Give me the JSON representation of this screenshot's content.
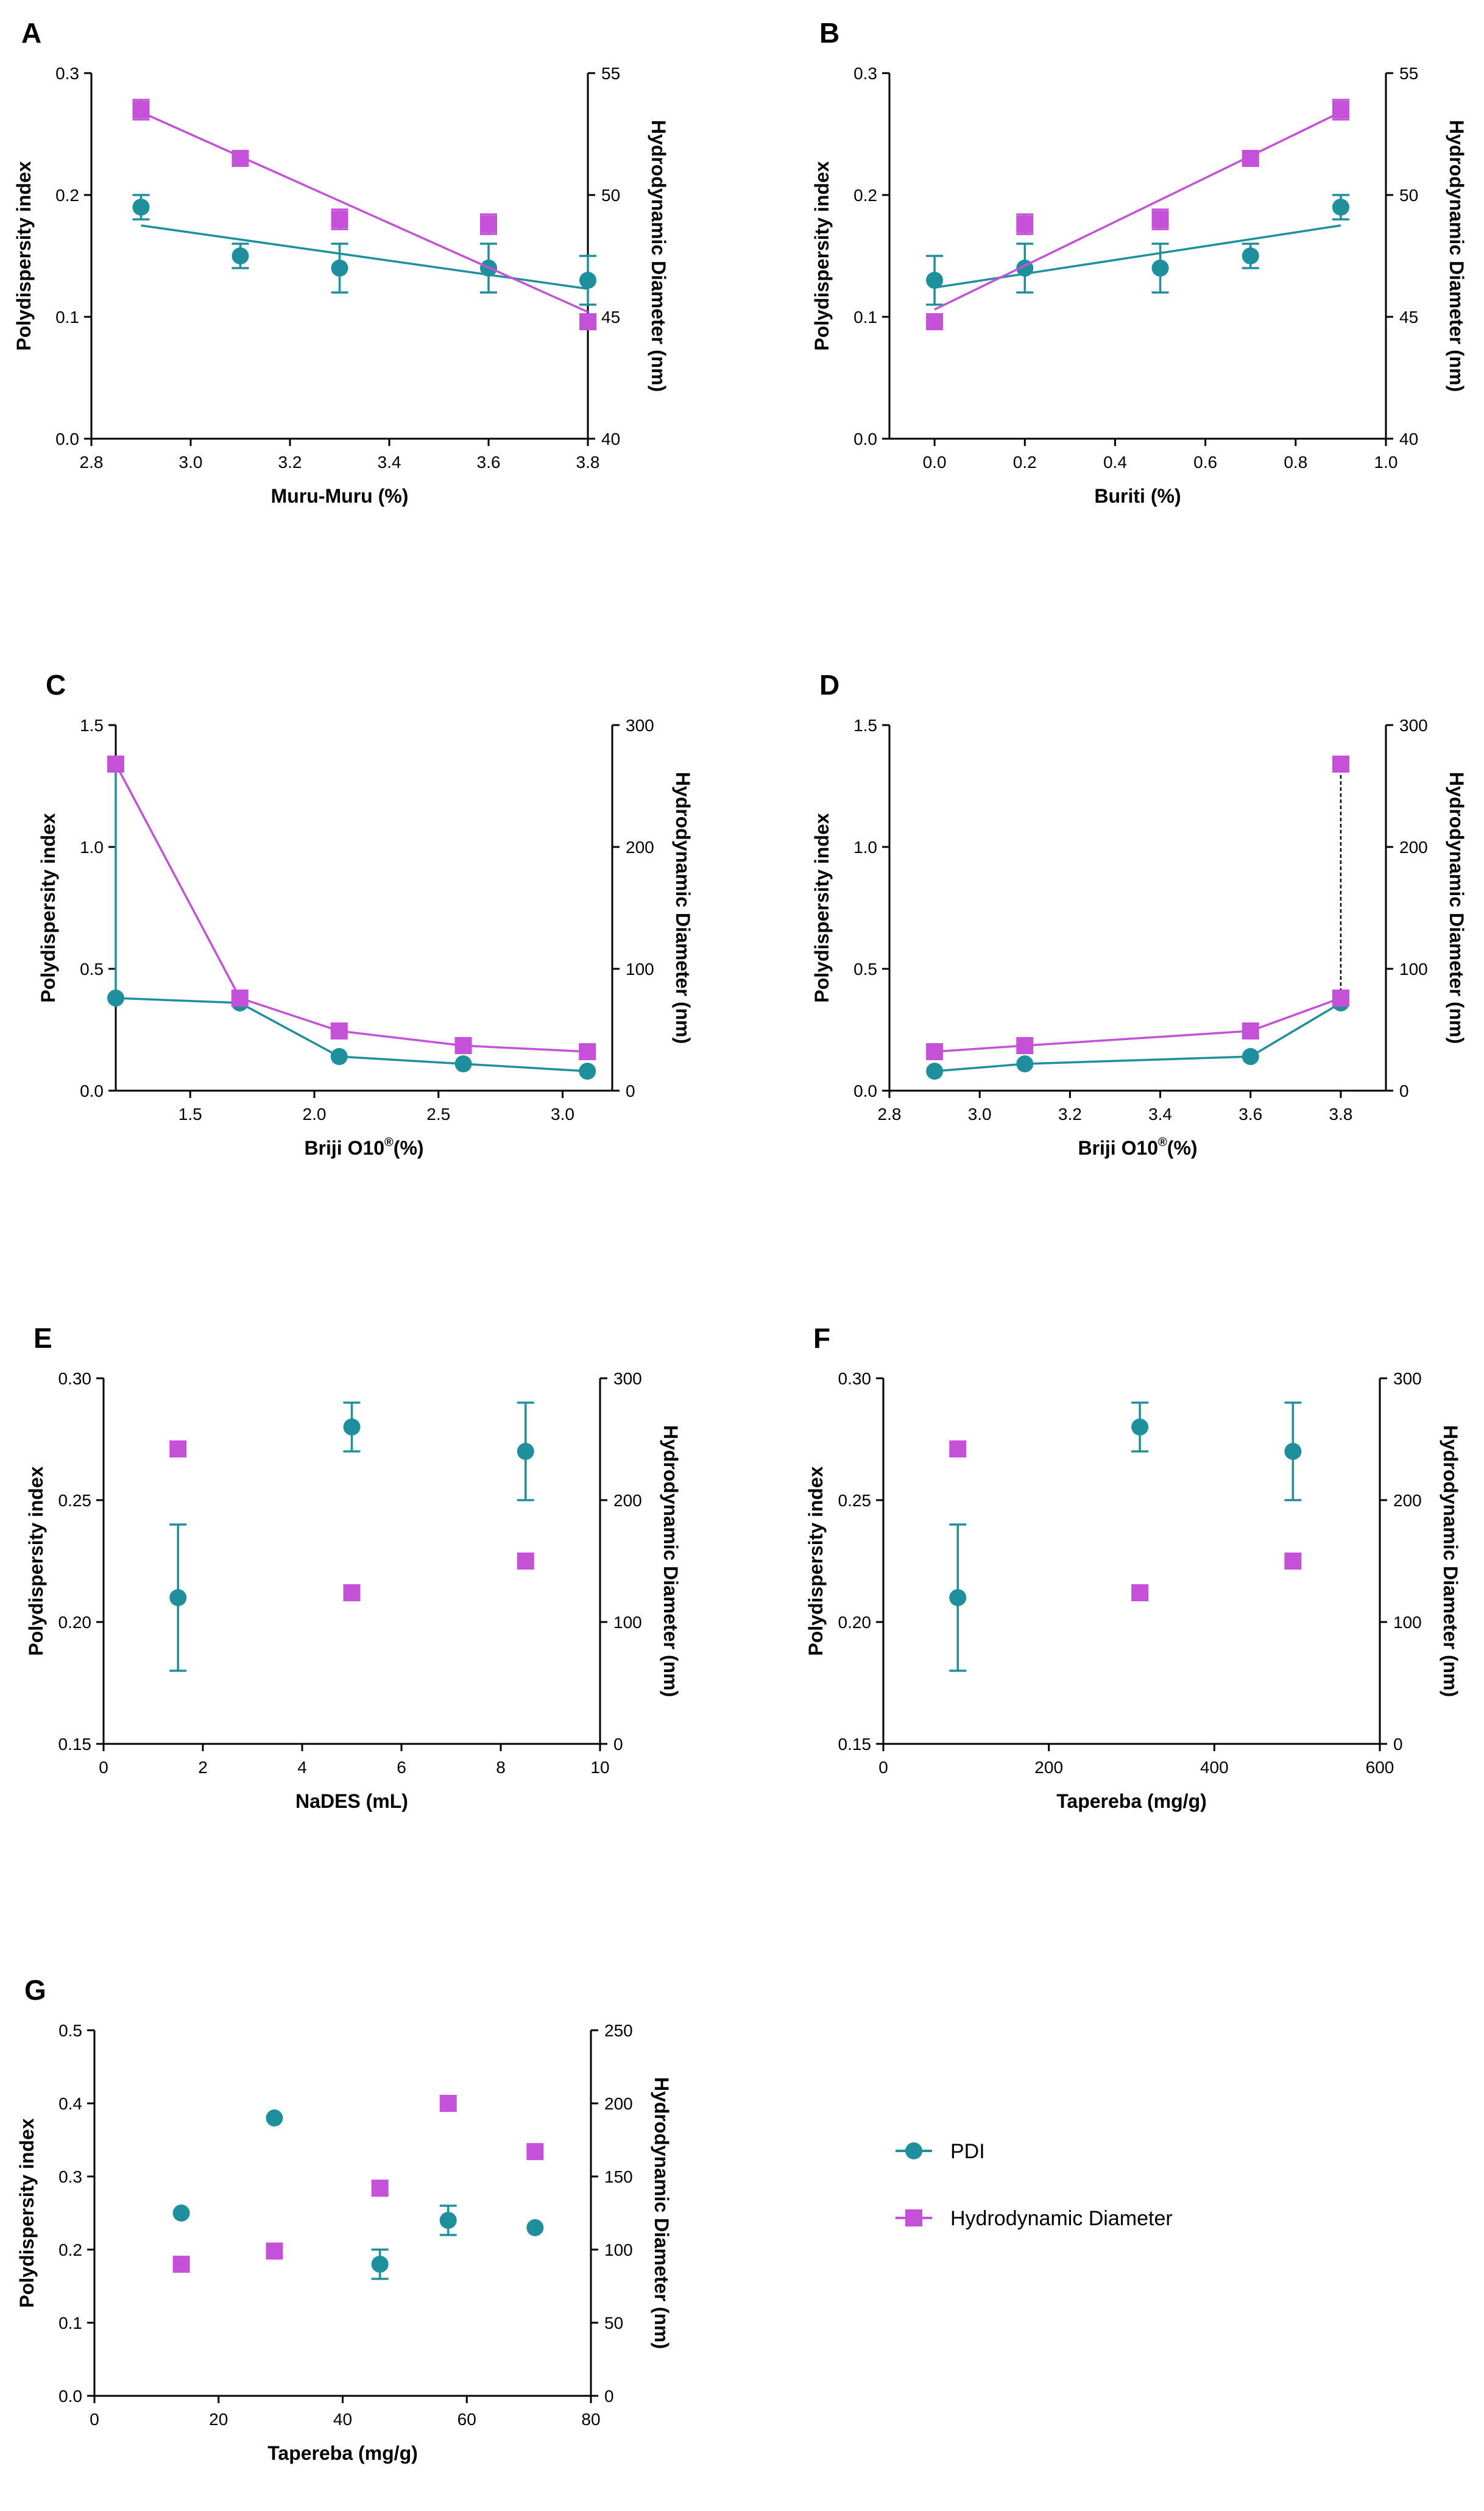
{
  "colors": {
    "pdi": "#1e8f9c",
    "hd": "#c451d8",
    "axis": "#000000"
  },
  "legend": {
    "pdi": "PDI",
    "hd": "Hydrodynamic Diameter"
  },
  "chart_data": [
    {
      "panel": "A",
      "type": "scatter",
      "xlabel": "Muru-Muru (%)",
      "ylabel": "Polydispersity index",
      "y2label": "Hydrodynamic Diameter (nm)",
      "xlim": [
        2.8,
        3.8
      ],
      "xticks": [
        2.8,
        3.0,
        3.2,
        3.4,
        3.6,
        3.8
      ],
      "xticklabels": [
        "2.8",
        "3.0",
        "3.2",
        "3.4",
        "3.6",
        "3.8"
      ],
      "ylim": [
        0,
        0.3
      ],
      "yticks": [
        0,
        0.1,
        0.2,
        0.3
      ],
      "yticklabels": [
        "0.0",
        "0.1",
        "0.2",
        "0.3"
      ],
      "y2lim": [
        40,
        55
      ],
      "y2ticks": [
        40,
        45,
        50,
        55
      ],
      "y2ticklabels": [
        "40",
        "45",
        "50",
        "55"
      ],
      "series": [
        {
          "name": "PDI",
          "axis": "y",
          "marker": "circle",
          "x": [
            2.9,
            3.1,
            3.3,
            3.6,
            3.8
          ],
          "y": [
            0.19,
            0.15,
            0.14,
            0.14,
            0.13
          ],
          "err": [
            0.01,
            0.01,
            0.02,
            0.02,
            0.02
          ],
          "fit": [
            [
              2.9,
              0.175
            ],
            [
              3.8,
              0.123
            ]
          ]
        },
        {
          "name": "Hydrodynamic Diameter",
          "axis": "y2",
          "marker": "square",
          "x": [
            2.9,
            3.1,
            3.3,
            3.6,
            3.8
          ],
          "y": [
            53.5,
            51.5,
            49.0,
            48.8,
            44.8
          ],
          "err": [
            0.4,
            0.2,
            0.4,
            0.4,
            0.2
          ],
          "fit": [
            [
              2.9,
              53.4
            ],
            [
              3.8,
              45.2
            ]
          ]
        }
      ]
    },
    {
      "panel": "B",
      "type": "scatter",
      "xlabel": "Buriti (%)",
      "ylabel": "Polydispersity index",
      "y2label": "Hydrodynamic Diameter (nm)",
      "xlim": [
        -0.1,
        1.0
      ],
      "xticks": [
        0.0,
        0.2,
        0.4,
        0.6,
        0.8,
        1.0
      ],
      "xticklabels": [
        "0.0",
        "0.2",
        "0.4",
        "0.6",
        "0.8",
        "1.0"
      ],
      "ylim": [
        0,
        0.3
      ],
      "yticks": [
        0,
        0.1,
        0.2,
        0.3
      ],
      "yticklabels": [
        "0.0",
        "0.1",
        "0.2",
        "0.3"
      ],
      "y2lim": [
        40,
        55
      ],
      "y2ticks": [
        40,
        45,
        50,
        55
      ],
      "y2ticklabels": [
        "40",
        "45",
        "50",
        "55"
      ],
      "series": [
        {
          "name": "PDI",
          "axis": "y",
          "marker": "circle",
          "x": [
            0.0,
            0.2,
            0.5,
            0.7,
            0.9
          ],
          "y": [
            0.13,
            0.14,
            0.14,
            0.15,
            0.19
          ],
          "err": [
            0.02,
            0.02,
            0.02,
            0.01,
            0.01
          ],
          "fit": [
            [
              0.0,
              0.124
            ],
            [
              0.9,
              0.175
            ]
          ]
        },
        {
          "name": "Hydrodynamic Diameter",
          "axis": "y2",
          "marker": "square",
          "x": [
            0.0,
            0.2,
            0.5,
            0.7,
            0.9
          ],
          "y": [
            44.8,
            48.8,
            49.0,
            51.5,
            53.5
          ],
          "err": [
            0.2,
            0.4,
            0.4,
            0.2,
            0.4
          ],
          "fit": [
            [
              0.0,
              45.3
            ],
            [
              0.9,
              53.4
            ]
          ]
        }
      ]
    },
    {
      "panel": "C",
      "type": "line",
      "xlabel": "Briji O10",
      "xlabel_sup": "®",
      "xlabel_tail": "(%)",
      "ylabel": "Polydispersity index",
      "y2label": "Hydrodynamic Diameter (nm)",
      "xlim": [
        1.2,
        3.2
      ],
      "xticks": [
        1.5,
        2.0,
        2.5,
        3.0
      ],
      "xticklabels": [
        "1.5",
        "2.0",
        "2.5",
        "3.0"
      ],
      "ylim": [
        0,
        1.5
      ],
      "yticks": [
        0,
        0.5,
        1.0,
        1.5
      ],
      "yticklabels": [
        "0.0",
        "0.5",
        "1.0",
        "1.5"
      ],
      "y2lim": [
        0,
        300
      ],
      "y2ticks": [
        0,
        100,
        200,
        300
      ],
      "y2ticklabels": [
        "0",
        "100",
        "200",
        "300"
      ],
      "series": [
        {
          "name": "PDI",
          "axis": "y",
          "marker": "circle",
          "x": [
            1.2,
            1.7,
            2.1,
            2.6,
            3.1
          ],
          "y": [
            0.38,
            0.36,
            0.14,
            0.11,
            0.08
          ],
          "err": [
            0,
            0,
            0,
            0,
            0
          ],
          "connect": true,
          "drop_from": [
            1.2,
            1.34
          ]
        },
        {
          "name": "Hydrodynamic Diameter",
          "axis": "y2",
          "marker": "square",
          "x": [
            1.2,
            1.7,
            2.1,
            2.6,
            3.1
          ],
          "y": [
            268,
            76,
            49,
            37,
            32
          ],
          "err": [
            0,
            0,
            0,
            0,
            0
          ],
          "connect": true
        }
      ]
    },
    {
      "panel": "D",
      "type": "line",
      "xlabel": "Briji O10",
      "xlabel_sup": "®",
      "xlabel_tail": "(%)",
      "ylabel": "Polydispersity index",
      "y2label": "Hydrodynamic Diameter (nm)",
      "xlim": [
        2.8,
        3.9
      ],
      "xticks": [
        2.8,
        3.0,
        3.2,
        3.4,
        3.6,
        3.8
      ],
      "xticklabels": [
        "2.8",
        "3.0",
        "3.2",
        "3.4",
        "3.6",
        "3.8"
      ],
      "ylim": [
        0,
        1.5
      ],
      "yticks": [
        0,
        0.5,
        1.0,
        1.5
      ],
      "yticklabels": [
        "0.0",
        "0.5",
        "1.0",
        "1.5"
      ],
      "y2lim": [
        0,
        300
      ],
      "y2ticks": [
        0,
        100,
        200,
        300
      ],
      "y2ticklabels": [
        "0",
        "100",
        "200",
        "300"
      ],
      "series": [
        {
          "name": "PDI",
          "axis": "y",
          "marker": "circle",
          "x": [
            2.9,
            3.1,
            3.6,
            3.8
          ],
          "y": [
            0.08,
            0.11,
            0.14,
            0.36
          ],
          "err": [
            0,
            0,
            0,
            0
          ],
          "connect": true
        },
        {
          "name": "Hydrodynamic Diameter",
          "axis": "y2",
          "marker": "square",
          "x": [
            2.9,
            3.1,
            3.6,
            3.8
          ],
          "y": [
            32,
            37,
            49,
            76
          ],
          "err": [
            0,
            0,
            0,
            0
          ],
          "connect": true,
          "spike": [
            3.8,
            268
          ]
        }
      ]
    },
    {
      "panel": "E",
      "type": "scatter",
      "xlabel": "NaDES (mL)",
      "ylabel": "Polydispersity index",
      "y2label": "Hydrodynamic Diameter (nm)",
      "xlim": [
        0,
        10
      ],
      "xticks": [
        0,
        2,
        4,
        6,
        8,
        10
      ],
      "xticklabels": [
        "0",
        "2",
        "4",
        "6",
        "8",
        "10"
      ],
      "ylim": [
        0.15,
        0.3
      ],
      "yticks": [
        0.15,
        0.2,
        0.25,
        0.3
      ],
      "yticklabels": [
        "0.15",
        "0.20",
        "0.25",
        "0.30"
      ],
      "y2lim": [
        0,
        300
      ],
      "y2ticks": [
        0,
        100,
        200,
        300
      ],
      "y2ticklabels": [
        "0",
        "100",
        "200",
        "300"
      ],
      "series": [
        {
          "name": "PDI",
          "axis": "y",
          "marker": "circle",
          "x": [
            1.5,
            5.0,
            8.5
          ],
          "y": [
            0.21,
            0.28,
            0.27
          ],
          "err": [
            0.03,
            0.01,
            0.02
          ]
        },
        {
          "name": "Hydrodynamic Diameter",
          "axis": "y2",
          "marker": "square",
          "x": [
            1.5,
            5.0,
            8.5
          ],
          "y": [
            242,
            124,
            150
          ],
          "err": [
            0,
            0,
            0
          ]
        }
      ]
    },
    {
      "panel": "F",
      "type": "scatter",
      "xlabel": "Tapereba (mg/g)",
      "ylabel": "Polydispersity index",
      "y2label": "Hydrodynamic Diameter (nm)",
      "xlim": [
        0,
        600
      ],
      "xticks": [
        0,
        200,
        400,
        600
      ],
      "xticklabels": [
        "0",
        "200",
        "400",
        "600"
      ],
      "ylim": [
        0.15,
        0.3
      ],
      "yticks": [
        0.15,
        0.2,
        0.25,
        0.3
      ],
      "yticklabels": [
        "0.15",
        "0.20",
        "0.25",
        "0.30"
      ],
      "y2lim": [
        0,
        300
      ],
      "y2ticks": [
        0,
        100,
        200,
        300
      ],
      "y2ticklabels": [
        "0",
        "100",
        "200",
        "300"
      ],
      "series": [
        {
          "name": "PDI",
          "axis": "y",
          "marker": "circle",
          "x": [
            90,
            310,
            495
          ],
          "y": [
            0.21,
            0.28,
            0.27
          ],
          "err": [
            0.03,
            0.01,
            0.02
          ]
        },
        {
          "name": "Hydrodynamic Diameter",
          "axis": "y2",
          "marker": "square",
          "x": [
            90,
            310,
            495
          ],
          "y": [
            242,
            124,
            150
          ],
          "err": [
            0,
            0,
            0
          ]
        }
      ]
    },
    {
      "panel": "G",
      "type": "scatter",
      "xlabel": "Tapereba (mg/g)",
      "ylabel": "Polydispersity index",
      "y2label": "Hydrodynamic Diameter (nm)",
      "xlim": [
        0,
        80
      ],
      "xticks": [
        0,
        20,
        40,
        60,
        80
      ],
      "xticklabels": [
        "0",
        "20",
        "40",
        "60",
        "80"
      ],
      "ylim": [
        0,
        0.5
      ],
      "yticks": [
        0,
        0.1,
        0.2,
        0.3,
        0.4,
        0.5
      ],
      "yticklabels": [
        "0.0",
        "0.1",
        "0.2",
        "0.3",
        "0.4",
        "0.5"
      ],
      "y2lim": [
        0,
        250
      ],
      "y2ticks": [
        0,
        50,
        100,
        150,
        200,
        250
      ],
      "y2ticklabels": [
        "0",
        "50",
        "100",
        "150",
        "200",
        "250"
      ],
      "series": [
        {
          "name": "PDI",
          "axis": "y",
          "marker": "circle",
          "x": [
            14,
            29,
            46,
            57,
            71
          ],
          "y": [
            0.25,
            0.38,
            0.18,
            0.24,
            0.23
          ],
          "err": [
            0,
            0,
            0.02,
            0.02,
            0
          ]
        },
        {
          "name": "Hydrodynamic Diameter",
          "axis": "y2",
          "marker": "square",
          "x": [
            14,
            29,
            46,
            57,
            71
          ],
          "y": [
            90,
            99,
            142,
            200,
            167
          ],
          "err": [
            0,
            0,
            0,
            0,
            0
          ]
        }
      ]
    }
  ]
}
